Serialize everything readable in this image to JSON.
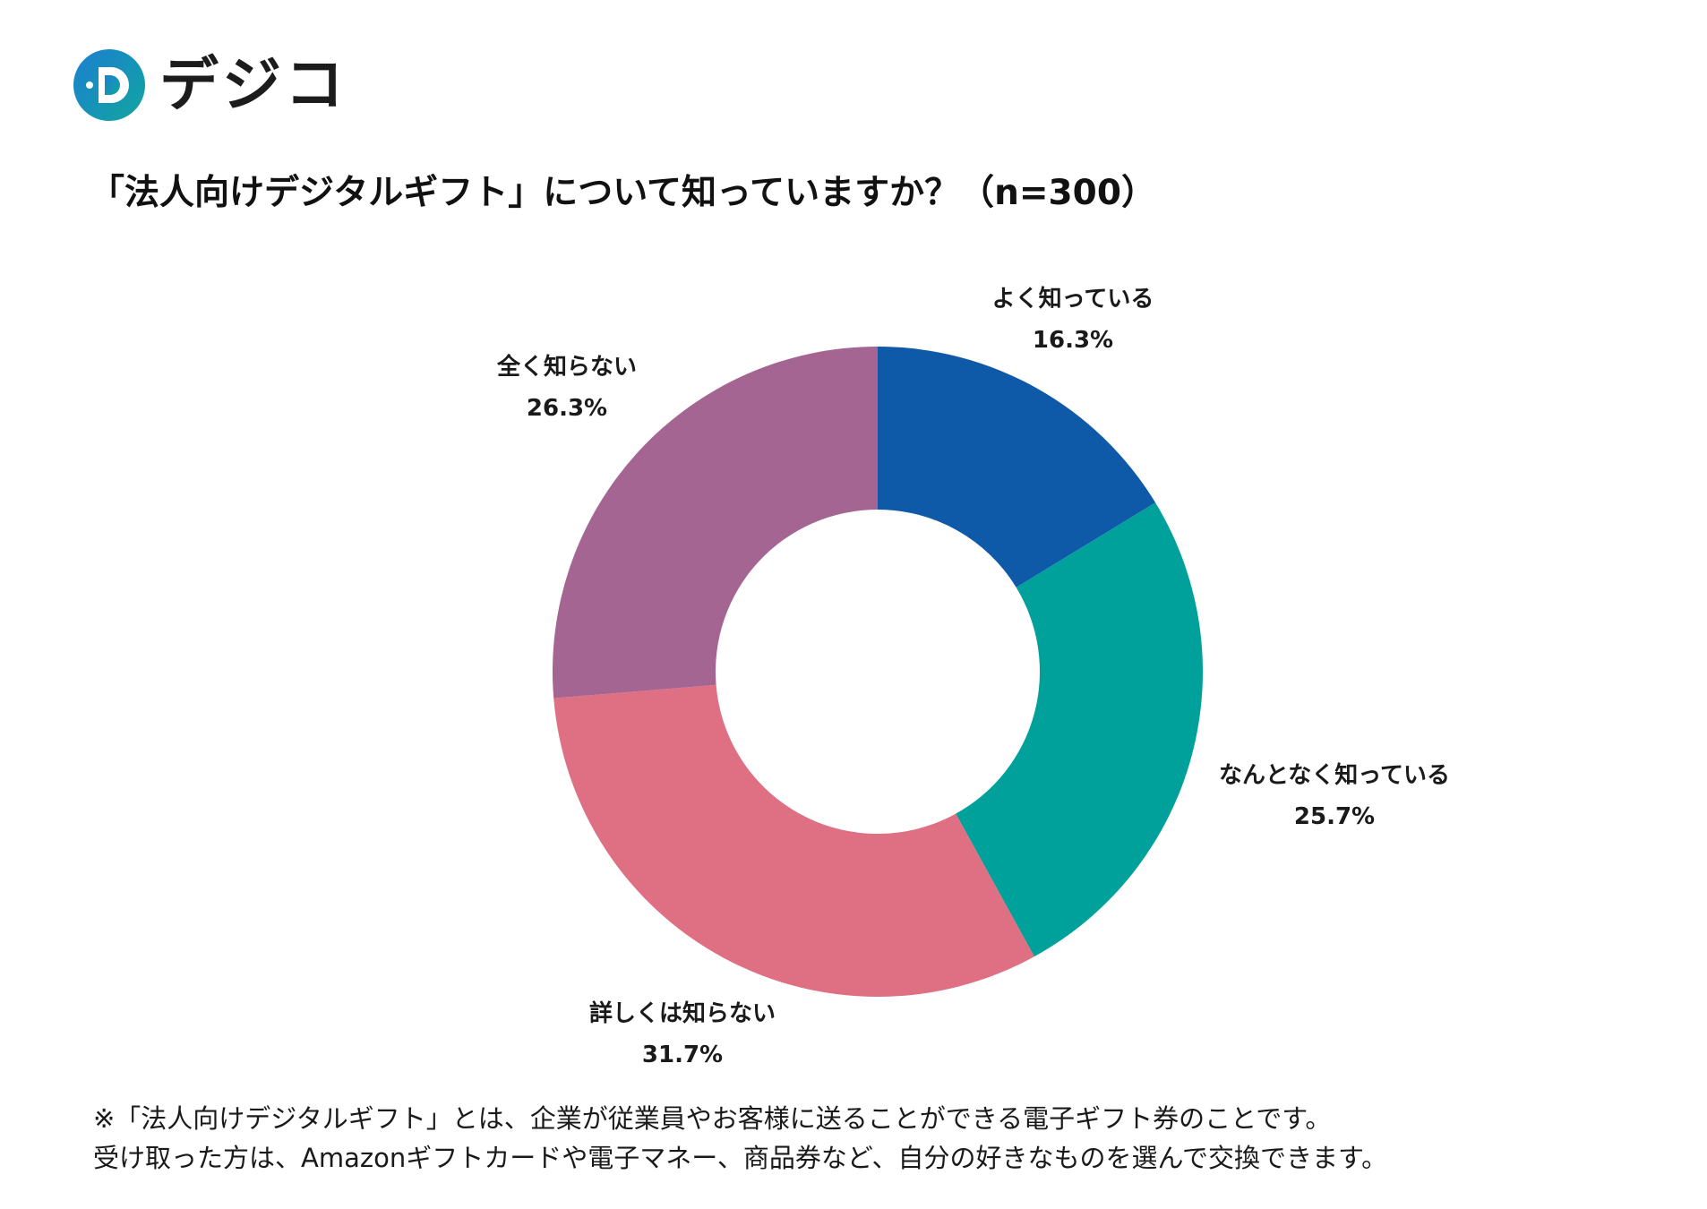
{
  "brand": {
    "name": "デジコ",
    "mark_letter": "D",
    "colors": {
      "ring_start": "#1b7fd0",
      "ring_end": "#12a5a0",
      "dots": "#1b9bd8",
      "text": "#1c1c1c"
    }
  },
  "chart_data": {
    "type": "pie",
    "donut": true,
    "title": "「法人向けデジタルギフト」について知っていますか？（n=300）",
    "n": 300,
    "start_angle_deg": 0,
    "direction": "clockwise",
    "slices": [
      {
        "label": "よく知っている",
        "value": 16.3,
        "value_label": "16.3%",
        "color": "#0f5aa8"
      },
      {
        "label": "なんとなく知っている",
        "value": 25.7,
        "value_label": "25.7%",
        "color": "#00a19b"
      },
      {
        "label": "詳しくは知らない",
        "value": 31.7,
        "value_label": "31.7%",
        "color": "#df6f82"
      },
      {
        "label": "全く知らない",
        "value": 26.3,
        "value_label": "26.3%",
        "color": "#a46593"
      }
    ]
  },
  "notes": [
    "※「法人向けデジタルギフト」とは、企業が従業員やお客様に送ることができる電子ギフト券のことです。",
    "受け取った方は、Amazonギフトカードや電子マネー、商品券など、自分の好きなものを選んで交換できます。"
  ]
}
